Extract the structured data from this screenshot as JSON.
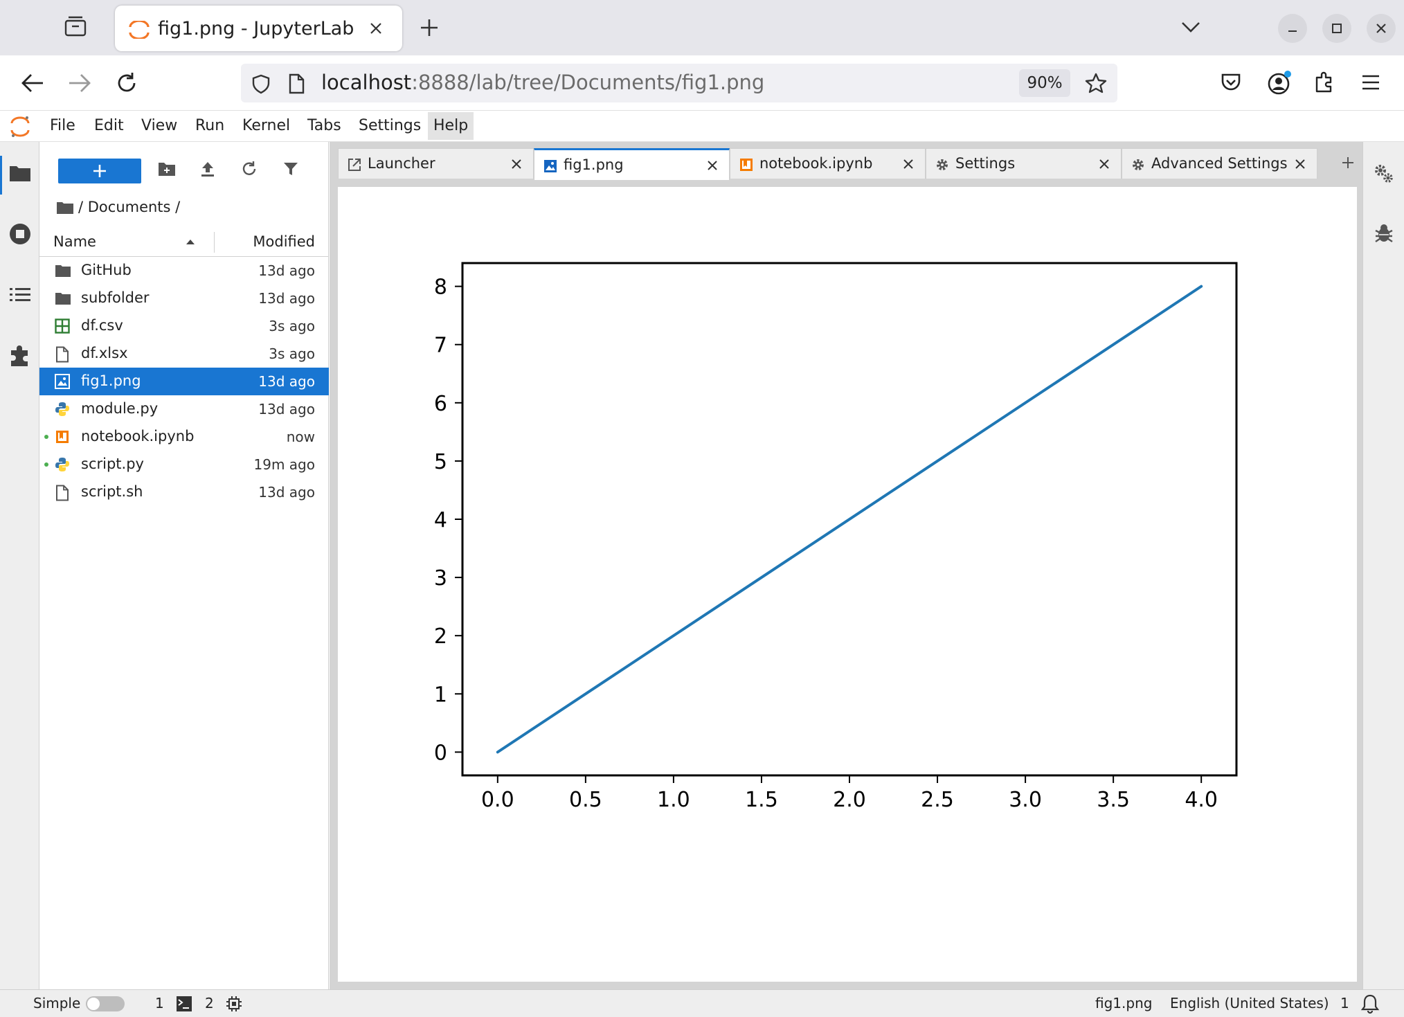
{
  "browser": {
    "tab_title": "fig1.png - JupyterLab",
    "url_host": "localhost",
    "url_rest": ":8888/lab/tree/Documents/fig1.png",
    "zoom": "90%"
  },
  "menu": {
    "items": [
      "File",
      "Edit",
      "View",
      "Run",
      "Kernel",
      "Tabs",
      "Settings",
      "Help"
    ],
    "active": "Help"
  },
  "filebrowser": {
    "breadcrumb": "/ Documents /",
    "col_name": "Name",
    "col_modified": "Modified",
    "files": [
      {
        "name": "GitHub",
        "modified": "13d ago",
        "icon": "folder-icon",
        "selected": false,
        "running": false
      },
      {
        "name": "subfolder",
        "modified": "13d ago",
        "icon": "folder-icon",
        "selected": false,
        "running": false
      },
      {
        "name": "df.csv",
        "modified": "3s ago",
        "icon": "spreadsheet-icon",
        "selected": false,
        "running": false
      },
      {
        "name": "df.xlsx",
        "modified": "3s ago",
        "icon": "file-icon",
        "selected": false,
        "running": false
      },
      {
        "name": "fig1.png",
        "modified": "13d ago",
        "icon": "image-icon",
        "selected": true,
        "running": false
      },
      {
        "name": "module.py",
        "modified": "13d ago",
        "icon": "python-icon",
        "selected": false,
        "running": false
      },
      {
        "name": "notebook.ipynb",
        "modified": "now",
        "icon": "notebook-icon",
        "selected": false,
        "running": true
      },
      {
        "name": "script.py",
        "modified": "19m ago",
        "icon": "python-icon",
        "selected": false,
        "running": true
      },
      {
        "name": "script.sh",
        "modified": "13d ago",
        "icon": "file-icon",
        "selected": false,
        "running": false
      }
    ]
  },
  "doc_tabs": [
    {
      "label": "Launcher",
      "icon": "launcher-icon",
      "active": false
    },
    {
      "label": "fig1.png",
      "icon": "image-icon",
      "active": true
    },
    {
      "label": "notebook.ipynb",
      "icon": "notebook-icon",
      "active": false
    },
    {
      "label": "Settings",
      "icon": "gear-icon",
      "active": false
    },
    {
      "label": "Advanced Settings Editor",
      "icon": "gear-icon",
      "active": false
    }
  ],
  "chart_data": {
    "type": "line",
    "x": [
      0.0,
      4.0
    ],
    "series": [
      {
        "values": [
          0,
          8
        ],
        "color": "#1f77b4"
      }
    ],
    "xlim": [
      -0.2,
      4.2
    ],
    "ylim": [
      -0.4,
      8.4
    ],
    "xticks": [
      "0.0",
      "0.5",
      "1.0",
      "1.5",
      "2.0",
      "2.5",
      "3.0",
      "3.5",
      "4.0"
    ],
    "yticks": [
      "0",
      "1",
      "2",
      "3",
      "4",
      "5",
      "6",
      "7",
      "8"
    ],
    "title": "",
    "xlabel": "",
    "ylabel": "",
    "grid": false
  },
  "statusbar": {
    "mode": "Simple",
    "kernels": "1",
    "terminals": "2",
    "filename": "fig1.png",
    "language": "English (United States)",
    "notifications": "1"
  },
  "colors": {
    "accent": "#1976d2",
    "jupyter_orange": "#f37726",
    "running_dot": "#4caf50"
  }
}
